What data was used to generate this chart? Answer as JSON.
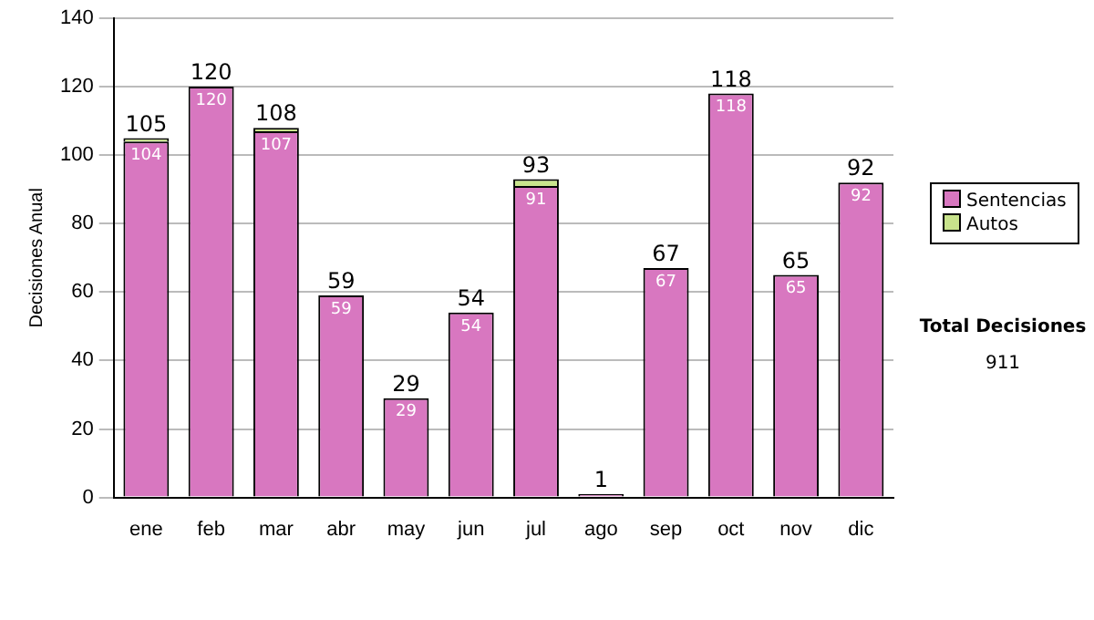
{
  "chart_data": {
    "type": "bar",
    "stacked": true,
    "ylabel": "Decisiones Anual",
    "categories": [
      "ene",
      "feb",
      "mar",
      "abr",
      "may",
      "jun",
      "jul",
      "ago",
      "sep",
      "oct",
      "nov",
      "dic"
    ],
    "series": [
      {
        "name": "Sentencias",
        "color": "#d877c0",
        "values": [
          104,
          120,
          107,
          59,
          29,
          54,
          91,
          1,
          67,
          118,
          65,
          92
        ],
        "value_labels": [
          "104",
          "120",
          "107",
          "59",
          "29",
          "54",
          "91",
          null,
          "67",
          "118",
          "65",
          "92"
        ]
      },
      {
        "name": "Autos",
        "color": "#c8e38c",
        "values": [
          1,
          0,
          1,
          0,
          0,
          0,
          2,
          0,
          0,
          0,
          0,
          0
        ]
      }
    ],
    "totals": [
      "105",
      "120",
      "108",
      "59",
      "29",
      "54",
      "93",
      "1",
      "67",
      "118",
      "65",
      "92"
    ],
    "ylim": [
      0,
      140
    ],
    "yticks": [
      0,
      20,
      40,
      60,
      80,
      100,
      120,
      140
    ],
    "grid": "y",
    "legend": "right",
    "annotations": [
      "Total Decisiones",
      "911"
    ]
  }
}
